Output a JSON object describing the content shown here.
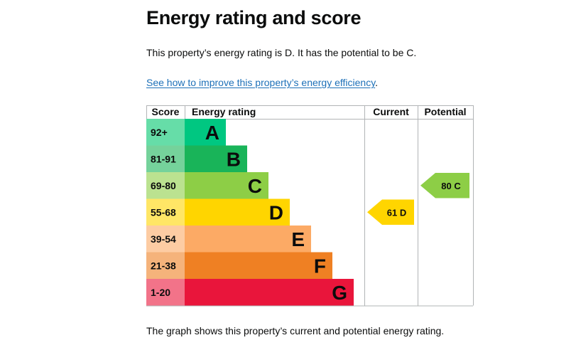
{
  "page": {
    "title": "Energy rating and score",
    "intro": "This property’s energy rating is D. It has the potential to be C.",
    "link_text": "See how to improve this property’s energy efficiency",
    "link_suffix": ".",
    "caption": "The graph shows this property’s current and potential energy rating."
  },
  "chart_data": {
    "type": "bar",
    "headers": {
      "score": "Score",
      "rating": "Energy rating",
      "current": "Current",
      "potential": "Potential"
    },
    "bands": [
      {
        "letter": "A",
        "range": "92+",
        "color": "#00c781",
        "score_bg": "#66dda8"
      },
      {
        "letter": "B",
        "range": "81-91",
        "color": "#19b459",
        "score_bg": "#75d29b"
      },
      {
        "letter": "C",
        "range": "69-80",
        "color": "#8dce46",
        "score_bg": "#bbe290"
      },
      {
        "letter": "D",
        "range": "55-68",
        "color": "#ffd500",
        "score_bg": "#ffe666"
      },
      {
        "letter": "E",
        "range": "39-54",
        "color": "#fcaa65",
        "score_bg": "#fdcca3"
      },
      {
        "letter": "F",
        "range": "21-38",
        "color": "#ef8023",
        "score_bg": "#f5b37b"
      },
      {
        "letter": "G",
        "range": "1-20",
        "color": "#e9153b",
        "score_bg": "#f27389"
      }
    ],
    "current": {
      "score": 61,
      "band": "D",
      "label": "61 D",
      "color": "#ffd500"
    },
    "potential": {
      "score": 80,
      "band": "C",
      "label": "80 C",
      "color": "#8dce46"
    }
  }
}
